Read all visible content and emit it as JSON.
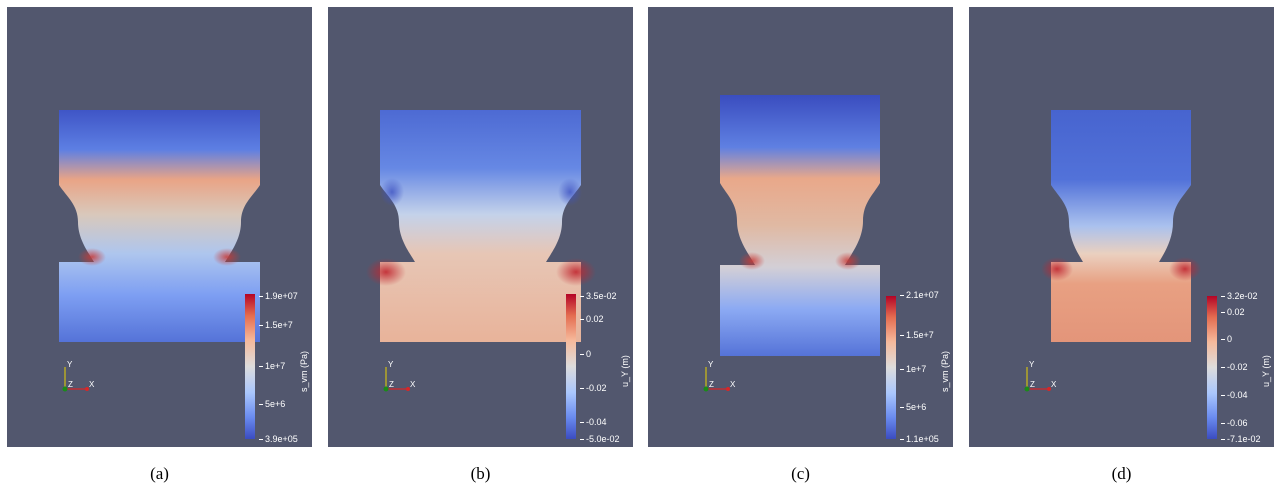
{
  "panels": [
    {
      "caption": "(a)",
      "field": "s_vm",
      "colorbar": {
        "title": "s_vm (Pa)",
        "ticks": [
          "1.9e+07",
          "1.5e+7",
          "1e+7",
          "5e+6",
          "3.9e+05"
        ]
      }
    },
    {
      "caption": "(b)",
      "field": "u_Y",
      "colorbar": {
        "title": "u_Y (m)",
        "ticks": [
          "3.5e-02",
          "0.02",
          "0",
          "-0.02",
          "-0.04",
          "-5.0e-02"
        ]
      }
    },
    {
      "caption": "(c)",
      "field": "s_vm",
      "colorbar": {
        "title": "s_vm (Pa)",
        "ticks": [
          "2.1e+07",
          "1.5e+7",
          "1e+7",
          "5e+6",
          "1.1e+05"
        ]
      }
    },
    {
      "caption": "(d)",
      "field": "u_Y",
      "colorbar": {
        "title": "u_Y (m)",
        "ticks": [
          "3.2e-02",
          "0.02",
          "0",
          "-0.02",
          "-0.04",
          "-0.06",
          "-7.1e-02"
        ]
      }
    }
  ],
  "axes_labels": {
    "y": "Y",
    "z": "Z",
    "x": "X"
  },
  "colors": {
    "background": "#52576e",
    "colormap_low": "#3b4cc0",
    "colormap_mid": "#dddcdc",
    "colormap_high": "#b40426",
    "axis_x": "#d62728",
    "axis_y": "#e8d000",
    "axis_z": "#1a8a1a"
  }
}
